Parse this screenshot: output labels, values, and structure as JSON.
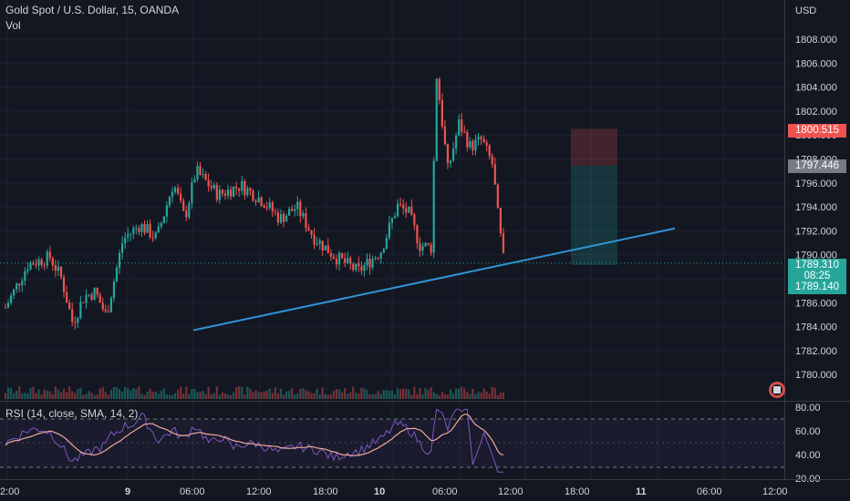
{
  "header": {
    "symbol_title": "Gold Spot / U.S. Dollar, 15, OANDA",
    "vol_label": "Vol"
  },
  "rsi": {
    "label": "RSI (14, close, SMA, 14, 2)",
    "axis": [
      "80.00",
      "60.00",
      "40.00",
      "20.00"
    ]
  },
  "price_axis": {
    "currency": "USD",
    "ticks": [
      "1808.000",
      "1806.000",
      "1804.000",
      "1802.000",
      "1800.000",
      "1798.000",
      "1796.000",
      "1794.000",
      "1792.000",
      "1790.000",
      "1788.000",
      "1786.000",
      "1784.000",
      "1782.000",
      "1780.000"
    ]
  },
  "price_labels": {
    "stop": "1800.515",
    "entry": "1797.446",
    "last": "1789.310",
    "countdown": "08:25",
    "target": "1789.140"
  },
  "time_axis": [
    "2:00",
    "9",
    "06:00",
    "12:00",
    "18:00",
    "10",
    "06:00",
    "12:00",
    "18:00",
    "11",
    "06:00",
    "12:00"
  ],
  "colors": {
    "background": "#131722",
    "up": "#26a69a",
    "down": "#ef5350",
    "trendline": "#2f95d6",
    "rsi_line": "#7e57c2",
    "rsi_sma": "#f0a8a0"
  },
  "chart_data": {
    "type": "candlestick",
    "timeframe": "15",
    "ylim": [
      1778.5,
      1809.5
    ],
    "trendline": {
      "x": [
        "9 04:00",
        "11 00:30"
      ],
      "y": [
        1783.7,
        1792.2
      ]
    },
    "position_tool": {
      "stop": 1800.515,
      "entry": 1797.446,
      "target": 1789.14
    },
    "close_path": [
      {
        "x": "8 22:00",
        "y": 1785.6
      },
      {
        "x": "9 00:00",
        "y": 1789.2
      },
      {
        "x": "9 02:00",
        "y": 1789.8
      },
      {
        "x": "9 03:00",
        "y": 1788.0
      },
      {
        "x": "9 04:00",
        "y": 1784.3
      },
      {
        "x": "9 05:00",
        "y": 1786.5
      },
      {
        "x": "9 06:00",
        "y": 1786.9
      },
      {
        "x": "9 07:00",
        "y": 1784.9
      },
      {
        "x": "9 08:30",
        "y": 1791.3
      },
      {
        "x": "9 10:00",
        "y": 1792.5
      },
      {
        "x": "9 11:30",
        "y": 1791.4
      },
      {
        "x": "9 13:00",
        "y": 1796.0
      },
      {
        "x": "9 14:00",
        "y": 1793.0
      },
      {
        "x": "9 15:00",
        "y": 1797.0
      },
      {
        "x": "9 17:00",
        "y": 1795.0
      },
      {
        "x": "9 19:00",
        "y": 1795.8
      },
      {
        "x": "9 21:00",
        "y": 1794.5
      },
      {
        "x": "9 22:30",
        "y": 1793.0
      },
      {
        "x": "10 00:00",
        "y": 1794.0
      },
      {
        "x": "10 01:30",
        "y": 1791.5
      },
      {
        "x": "10 03:30",
        "y": 1789.8
      },
      {
        "x": "10 05:30",
        "y": 1788.6
      },
      {
        "x": "10 07:30",
        "y": 1790.3
      },
      {
        "x": "10 09:00",
        "y": 1794.1
      },
      {
        "x": "10 10:00",
        "y": 1793.5
      },
      {
        "x": "10 11:00",
        "y": 1790.8
      },
      {
        "x": "10 12:00",
        "y": 1790.6
      },
      {
        "x": "10 12:30",
        "y": 1805.0
      },
      {
        "x": "10 13:30",
        "y": 1797.0
      },
      {
        "x": "10 14:30",
        "y": 1801.0
      },
      {
        "x": "10 15:30",
        "y": 1799.0
      },
      {
        "x": "10 16:30",
        "y": 1799.6
      },
      {
        "x": "10 17:30",
        "y": 1797.5
      },
      {
        "x": "10 18:00",
        "y": 1793.0
      },
      {
        "x": "10 18:30",
        "y": 1789.3
      }
    ]
  }
}
